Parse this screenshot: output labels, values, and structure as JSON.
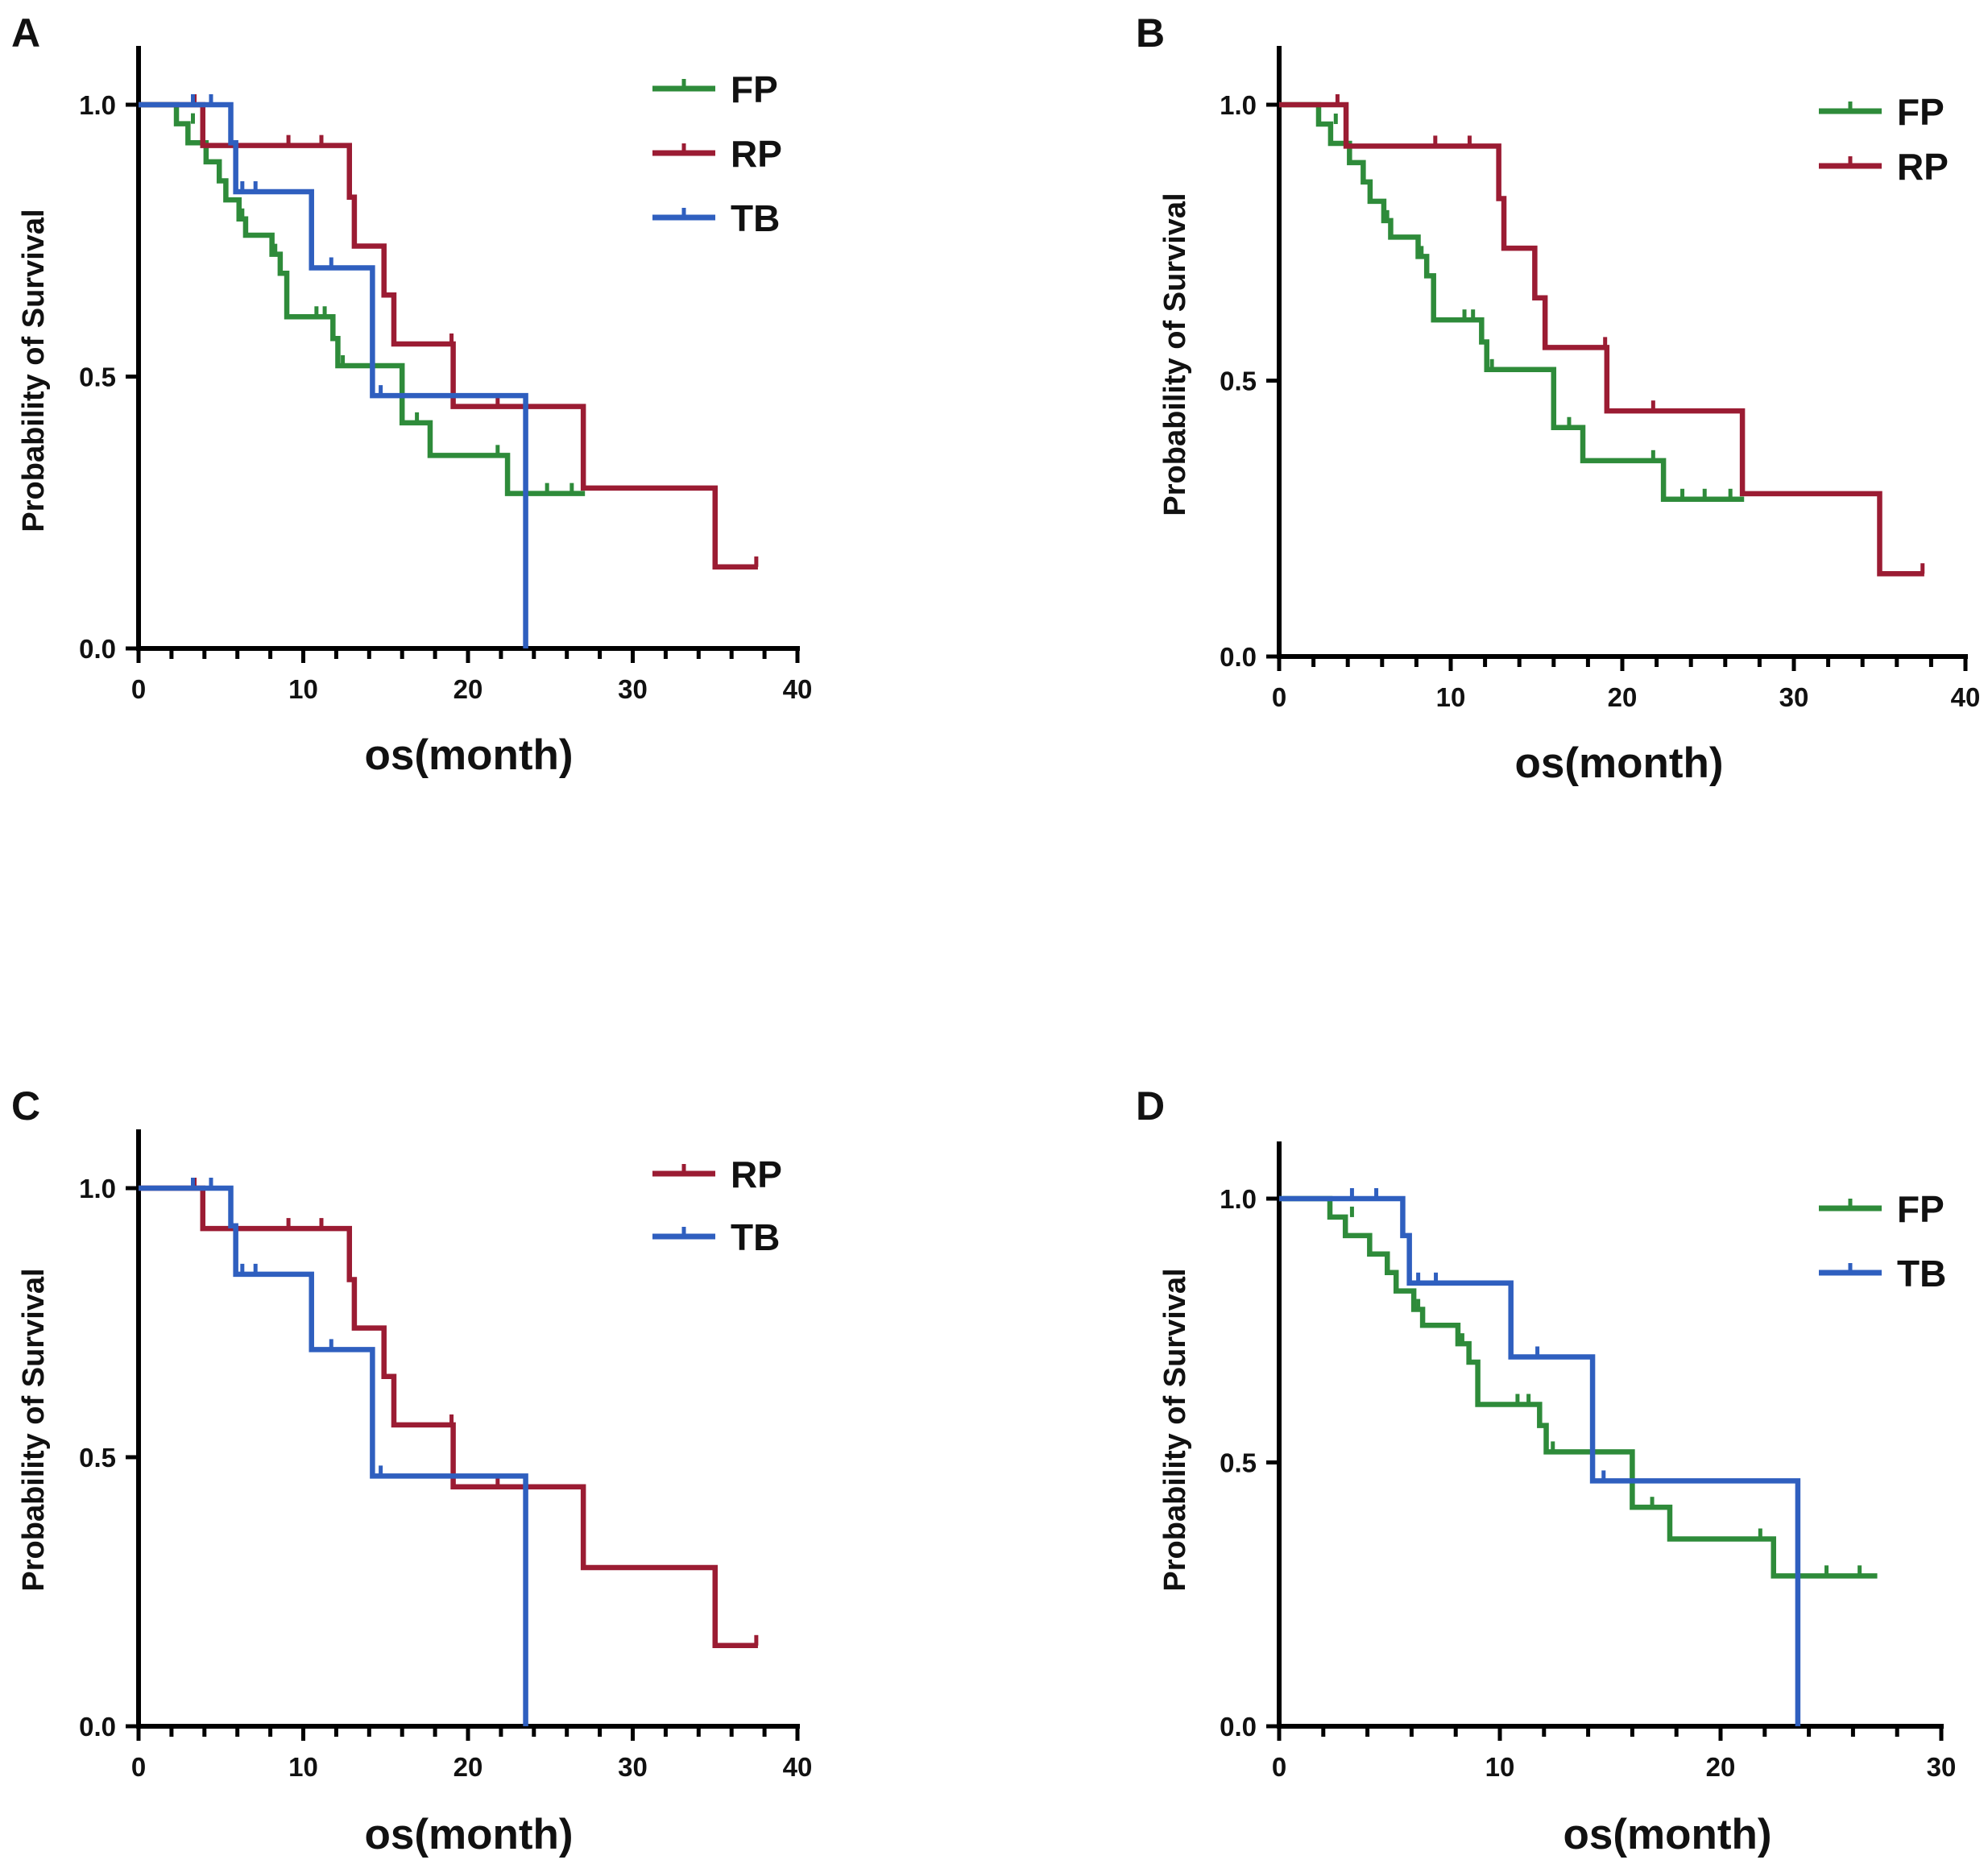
{
  "colors": {
    "FP": "#2e8b3a",
    "RP": "#9b1c33",
    "TB": "#2f5fbf",
    "axis": "#000000"
  },
  "chart_data": [
    {
      "panel": "A",
      "type": "line",
      "subtype": "kaplan-meier",
      "xlabel": "os(month)",
      "ylabel": "Probability of Survival",
      "xlim": [
        0,
        40
      ],
      "ylim": [
        0,
        1.1
      ],
      "xticks": [
        "0",
        "10",
        "20",
        "30",
        "40"
      ],
      "yticks": [
        "0.0",
        "0.5",
        "1.0"
      ],
      "legend": [
        "FP",
        "RP",
        "TB"
      ],
      "series": [
        {
          "name": "FP",
          "steps": [
            [
              0,
              1.0
            ],
            [
              2.3,
              0.965
            ],
            [
              3.0,
              0.93
            ],
            [
              4.1,
              0.895
            ],
            [
              4.9,
              0.86
            ],
            [
              5.3,
              0.825
            ],
            [
              6.1,
              0.79
            ],
            [
              6.5,
              0.76
            ],
            [
              8.1,
              0.725
            ],
            [
              8.6,
              0.69
            ],
            [
              9.0,
              0.61
            ],
            [
              11.8,
              0.57
            ],
            [
              12.1,
              0.52
            ],
            [
              16.0,
              0.415
            ],
            [
              17.7,
              0.355
            ],
            [
              22.4,
              0.285
            ],
            [
              27.1,
              0.285
            ]
          ],
          "censored": [
            [
              3.3,
              0.965
            ],
            [
              6.3,
              0.79
            ],
            [
              8.3,
              0.725
            ],
            [
              10.8,
              0.61
            ],
            [
              11.3,
              0.61
            ],
            [
              12.4,
              0.52
            ],
            [
              16.9,
              0.415
            ],
            [
              21.8,
              0.355
            ],
            [
              23.5,
              0.285
            ],
            [
              24.8,
              0.285
            ],
            [
              26.3,
              0.285
            ]
          ]
        },
        {
          "name": "RP",
          "steps": [
            [
              0,
              1.0
            ],
            [
              3.9,
              0.925
            ],
            [
              12.8,
              0.83
            ],
            [
              13.1,
              0.74
            ],
            [
              14.9,
              0.65
            ],
            [
              15.5,
              0.56
            ],
            [
              19.1,
              0.445
            ],
            [
              27.0,
              0.295
            ],
            [
              35.0,
              0.15
            ],
            [
              37.6,
              0.15
            ]
          ],
          "censored": [
            [
              3.4,
              1.0
            ],
            [
              9.1,
              0.925
            ],
            [
              11.1,
              0.925
            ],
            [
              19.0,
              0.56
            ],
            [
              21.8,
              0.445
            ],
            [
              37.5,
              0.15
            ]
          ]
        },
        {
          "name": "TB",
          "steps": [
            [
              0,
              1.0
            ],
            [
              5.6,
              0.93
            ],
            [
              5.9,
              0.84
            ],
            [
              10.5,
              0.7
            ],
            [
              14.2,
              0.465
            ],
            [
              23.5,
              0.0
            ]
          ],
          "censored": [
            [
              3.3,
              1.0
            ],
            [
              4.4,
              1.0
            ],
            [
              6.3,
              0.84
            ],
            [
              7.1,
              0.84
            ],
            [
              11.7,
              0.7
            ],
            [
              14.7,
              0.465
            ]
          ]
        }
      ]
    },
    {
      "panel": "B",
      "type": "line",
      "subtype": "kaplan-meier",
      "xlabel": "os(month)",
      "ylabel": "Probability of Survival",
      "xlim": [
        0,
        40
      ],
      "ylim": [
        0,
        1.1
      ],
      "xticks": [
        "0",
        "10",
        "20",
        "30",
        "40"
      ],
      "yticks": [
        "0.0",
        "0.5",
        "1.0"
      ],
      "legend": [
        "FP",
        "RP"
      ],
      "series": [
        {
          "name": "FP",
          "steps": [
            [
              0,
              1.0
            ],
            [
              2.3,
              0.965
            ],
            [
              3.0,
              0.93
            ],
            [
              4.1,
              0.895
            ],
            [
              4.9,
              0.86
            ],
            [
              5.3,
              0.825
            ],
            [
              6.1,
              0.79
            ],
            [
              6.5,
              0.76
            ],
            [
              8.1,
              0.725
            ],
            [
              8.6,
              0.69
            ],
            [
              9.0,
              0.61
            ],
            [
              11.8,
              0.57
            ],
            [
              12.1,
              0.52
            ],
            [
              16.0,
              0.415
            ],
            [
              17.7,
              0.355
            ],
            [
              22.4,
              0.285
            ],
            [
              27.1,
              0.285
            ]
          ],
          "censored": [
            [
              3.3,
              0.965
            ],
            [
              6.3,
              0.79
            ],
            [
              8.3,
              0.725
            ],
            [
              10.8,
              0.61
            ],
            [
              11.3,
              0.61
            ],
            [
              12.4,
              0.52
            ],
            [
              16.9,
              0.415
            ],
            [
              21.8,
              0.355
            ],
            [
              23.5,
              0.285
            ],
            [
              24.8,
              0.285
            ],
            [
              26.3,
              0.285
            ]
          ]
        },
        {
          "name": "RP",
          "steps": [
            [
              0,
              1.0
            ],
            [
              3.9,
              0.925
            ],
            [
              12.8,
              0.83
            ],
            [
              13.1,
              0.74
            ],
            [
              14.9,
              0.65
            ],
            [
              15.5,
              0.56
            ],
            [
              19.1,
              0.445
            ],
            [
              27.0,
              0.295
            ],
            [
              35.0,
              0.15
            ],
            [
              37.6,
              0.15
            ]
          ],
          "censored": [
            [
              3.4,
              1.0
            ],
            [
              9.1,
              0.925
            ],
            [
              11.1,
              0.925
            ],
            [
              19.0,
              0.56
            ],
            [
              21.8,
              0.445
            ],
            [
              37.5,
              0.15
            ]
          ]
        }
      ]
    },
    {
      "panel": "C",
      "type": "line",
      "subtype": "kaplan-meier",
      "xlabel": "os(month)",
      "ylabel": "Probability of Survival",
      "xlim": [
        0,
        40
      ],
      "ylim": [
        0,
        1.1
      ],
      "xticks": [
        "0",
        "10",
        "20",
        "30",
        "40"
      ],
      "yticks": [
        "0.0",
        "0.5",
        "1.0"
      ],
      "legend": [
        "RP",
        "TB"
      ],
      "series": [
        {
          "name": "RP",
          "steps": [
            [
              0,
              1.0
            ],
            [
              3.9,
              0.925
            ],
            [
              12.8,
              0.83
            ],
            [
              13.1,
              0.74
            ],
            [
              14.9,
              0.65
            ],
            [
              15.5,
              0.56
            ],
            [
              19.1,
              0.445
            ],
            [
              27.0,
              0.295
            ],
            [
              35.0,
              0.15
            ],
            [
              37.6,
              0.15
            ]
          ],
          "censored": [
            [
              3.4,
              1.0
            ],
            [
              9.1,
              0.925
            ],
            [
              11.1,
              0.925
            ],
            [
              19.0,
              0.56
            ],
            [
              21.8,
              0.445
            ],
            [
              37.5,
              0.15
            ]
          ]
        },
        {
          "name": "TB",
          "steps": [
            [
              0,
              1.0
            ],
            [
              5.6,
              0.93
            ],
            [
              5.9,
              0.84
            ],
            [
              10.5,
              0.7
            ],
            [
              14.2,
              0.465
            ],
            [
              23.5,
              0.0
            ]
          ],
          "censored": [
            [
              3.3,
              1.0
            ],
            [
              4.4,
              1.0
            ],
            [
              6.3,
              0.84
            ],
            [
              7.1,
              0.84
            ],
            [
              11.7,
              0.7
            ],
            [
              14.7,
              0.465
            ]
          ]
        }
      ]
    },
    {
      "panel": "D",
      "type": "line",
      "subtype": "kaplan-meier",
      "xlabel": "os(month)",
      "ylabel": "Probability of Survival",
      "xlim": [
        0,
        30
      ],
      "ylim": [
        0,
        1.1
      ],
      "xticks": [
        "0",
        "10",
        "20",
        "30"
      ],
      "yticks": [
        "0.0",
        "0.5",
        "1.0"
      ],
      "legend": [
        "FP",
        "TB"
      ],
      "series": [
        {
          "name": "FP",
          "steps": [
            [
              0,
              1.0
            ],
            [
              2.3,
              0.965
            ],
            [
              3.0,
              0.93
            ],
            [
              4.1,
              0.895
            ],
            [
              4.9,
              0.86
            ],
            [
              5.3,
              0.825
            ],
            [
              6.1,
              0.79
            ],
            [
              6.5,
              0.76
            ],
            [
              8.1,
              0.725
            ],
            [
              8.6,
              0.69
            ],
            [
              9.0,
              0.61
            ],
            [
              11.8,
              0.57
            ],
            [
              12.1,
              0.52
            ],
            [
              16.0,
              0.415
            ],
            [
              17.7,
              0.355
            ],
            [
              22.4,
              0.285
            ],
            [
              27.1,
              0.285
            ]
          ],
          "censored": [
            [
              3.3,
              0.965
            ],
            [
              6.3,
              0.79
            ],
            [
              8.3,
              0.725
            ],
            [
              10.8,
              0.61
            ],
            [
              11.3,
              0.61
            ],
            [
              12.4,
              0.52
            ],
            [
              16.9,
              0.415
            ],
            [
              21.8,
              0.355
            ],
            [
              23.5,
              0.285
            ],
            [
              24.8,
              0.285
            ],
            [
              26.3,
              0.285
            ]
          ]
        },
        {
          "name": "TB",
          "steps": [
            [
              0,
              1.0
            ],
            [
              5.6,
              0.93
            ],
            [
              5.9,
              0.84
            ],
            [
              10.5,
              0.7
            ],
            [
              14.2,
              0.465
            ],
            [
              23.5,
              0.0
            ]
          ],
          "censored": [
            [
              3.3,
              1.0
            ],
            [
              4.4,
              1.0
            ],
            [
              6.3,
              0.84
            ],
            [
              7.1,
              0.84
            ],
            [
              11.7,
              0.7
            ],
            [
              14.7,
              0.465
            ]
          ]
        }
      ]
    }
  ]
}
